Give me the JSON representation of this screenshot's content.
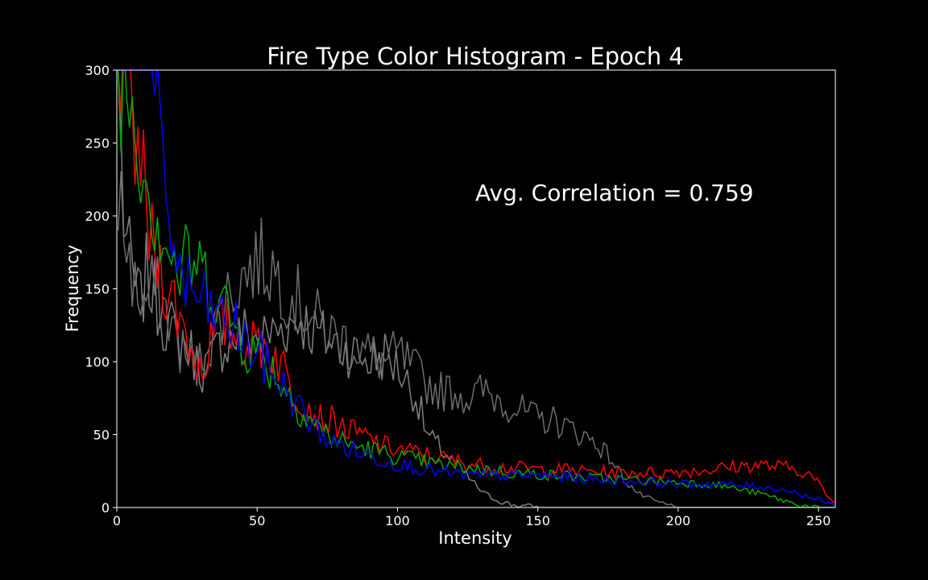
{
  "chart_data": {
    "type": "line",
    "title": "Fire Type Color Histogram - Epoch 4",
    "xlabel": "Intensity",
    "ylabel": "Frequency",
    "xlim": [
      0,
      256
    ],
    "ylim": [
      0,
      300
    ],
    "xticks": [
      0,
      50,
      100,
      150,
      200,
      250
    ],
    "yticks": [
      0,
      50,
      100,
      150,
      200,
      250,
      300
    ],
    "annotation": "Avg. Correlation = 0.759",
    "grid": false,
    "background": "#000000",
    "series": [
      {
        "color": "#808080",
        "points": [
          [
            0,
            300
          ],
          [
            2,
            200
          ],
          [
            4,
            170
          ],
          [
            6,
            150
          ],
          [
            8,
            140
          ],
          [
            10,
            160
          ],
          [
            12,
            150
          ],
          [
            14,
            140
          ],
          [
            16,
            130
          ],
          [
            18,
            125
          ],
          [
            20,
            120
          ],
          [
            22,
            115
          ],
          [
            25,
            110
          ],
          [
            28,
            100
          ],
          [
            30,
            95
          ],
          [
            33,
            100
          ],
          [
            36,
            110
          ],
          [
            40,
            115
          ],
          [
            45,
            120
          ],
          [
            50,
            115
          ],
          [
            55,
            120
          ],
          [
            60,
            125
          ],
          [
            65,
            130
          ],
          [
            70,
            120
          ],
          [
            75,
            115
          ],
          [
            80,
            110
          ],
          [
            85,
            105
          ],
          [
            90,
            100
          ],
          [
            95,
            105
          ],
          [
            100,
            95
          ],
          [
            105,
            80
          ],
          [
            108,
            65
          ],
          [
            110,
            50
          ],
          [
            115,
            40
          ],
          [
            120,
            30
          ],
          [
            125,
            20
          ],
          [
            130,
            10
          ],
          [
            135,
            5
          ],
          [
            140,
            2
          ],
          [
            150,
            0
          ],
          [
            160,
            0
          ],
          [
            256,
            0
          ]
        ]
      },
      {
        "color": "#6e6e6e",
        "points": [
          [
            0,
            220
          ],
          [
            3,
            180
          ],
          [
            6,
            150
          ],
          [
            9,
            140
          ],
          [
            12,
            150
          ],
          [
            15,
            145
          ],
          [
            18,
            130
          ],
          [
            22,
            110
          ],
          [
            25,
            100
          ],
          [
            28,
            95
          ],
          [
            32,
            110
          ],
          [
            36,
            130
          ],
          [
            40,
            150
          ],
          [
            45,
            160
          ],
          [
            50,
            170
          ],
          [
            55,
            165
          ],
          [
            60,
            150
          ],
          [
            65,
            140
          ],
          [
            70,
            130
          ],
          [
            75,
            120
          ],
          [
            80,
            115
          ],
          [
            85,
            110
          ],
          [
            90,
            105
          ],
          [
            95,
            100
          ],
          [
            100,
            105
          ],
          [
            105,
            95
          ],
          [
            110,
            85
          ],
          [
            115,
            80
          ],
          [
            120,
            80
          ],
          [
            125,
            75
          ],
          [
            130,
            80
          ],
          [
            135,
            75
          ],
          [
            140,
            70
          ],
          [
            145,
            65
          ],
          [
            150,
            60
          ],
          [
            155,
            60
          ],
          [
            160,
            55
          ],
          [
            165,
            50
          ],
          [
            170,
            45
          ],
          [
            175,
            35
          ],
          [
            180,
            20
          ],
          [
            185,
            10
          ],
          [
            190,
            5
          ],
          [
            195,
            2
          ],
          [
            200,
            0
          ],
          [
            256,
            0
          ]
        ]
      },
      {
        "color": "#ff0000",
        "points": [
          [
            0,
            300
          ],
          [
            3,
            280
          ],
          [
            5,
            260
          ],
          [
            8,
            240
          ],
          [
            10,
            200
          ],
          [
            12,
            180
          ],
          [
            14,
            170
          ],
          [
            16,
            160
          ],
          [
            18,
            150
          ],
          [
            20,
            140
          ],
          [
            22,
            130
          ],
          [
            25,
            115
          ],
          [
            28,
            100
          ],
          [
            30,
            95
          ],
          [
            32,
            110
          ],
          [
            35,
            120
          ],
          [
            38,
            125
          ],
          [
            42,
            120
          ],
          [
            45,
            115
          ],
          [
            48,
            110
          ],
          [
            50,
            115
          ],
          [
            53,
            110
          ],
          [
            56,
            105
          ],
          [
            58,
            100
          ],
          [
            60,
            90
          ],
          [
            62,
            80
          ],
          [
            65,
            75
          ],
          [
            68,
            70
          ],
          [
            70,
            65
          ],
          [
            72,
            62
          ],
          [
            75,
            60
          ],
          [
            78,
            58
          ],
          [
            80,
            55
          ],
          [
            83,
            52
          ],
          [
            86,
            50
          ],
          [
            90,
            47
          ],
          [
            95,
            42
          ],
          [
            100,
            40
          ],
          [
            105,
            38
          ],
          [
            110,
            36
          ],
          [
            115,
            34
          ],
          [
            120,
            32
          ],
          [
            125,
            30
          ],
          [
            130,
            29
          ],
          [
            135,
            28
          ],
          [
            140,
            27
          ],
          [
            145,
            27
          ],
          [
            150,
            26
          ],
          [
            155,
            26
          ],
          [
            160,
            26
          ],
          [
            165,
            25
          ],
          [
            170,
            25
          ],
          [
            175,
            24
          ],
          [
            180,
            24
          ],
          [
            185,
            24
          ],
          [
            190,
            24
          ],
          [
            195,
            24
          ],
          [
            200,
            25
          ],
          [
            205,
            25
          ],
          [
            210,
            26
          ],
          [
            215,
            27
          ],
          [
            220,
            28
          ],
          [
            225,
            29
          ],
          [
            230,
            29
          ],
          [
            235,
            28
          ],
          [
            240,
            27
          ],
          [
            245,
            24
          ],
          [
            248,
            20
          ],
          [
            250,
            15
          ],
          [
            252,
            10
          ],
          [
            254,
            5
          ],
          [
            256,
            0
          ]
        ]
      },
      {
        "color": "#00aa00",
        "points": [
          [
            0,
            300
          ],
          [
            3,
            290
          ],
          [
            6,
            270
          ],
          [
            8,
            250
          ],
          [
            10,
            230
          ],
          [
            12,
            210
          ],
          [
            14,
            200
          ],
          [
            16,
            190
          ],
          [
            18,
            180
          ],
          [
            20,
            165
          ],
          [
            22,
            160
          ],
          [
            25,
            170
          ],
          [
            28,
            165
          ],
          [
            30,
            160
          ],
          [
            33,
            155
          ],
          [
            36,
            145
          ],
          [
            40,
            130
          ],
          [
            43,
            120
          ],
          [
            46,
            110
          ],
          [
            50,
            105
          ],
          [
            53,
            100
          ],
          [
            56,
            92
          ],
          [
            60,
            80
          ],
          [
            63,
            72
          ],
          [
            66,
            65
          ],
          [
            70,
            58
          ],
          [
            73,
            52
          ],
          [
            76,
            48
          ],
          [
            80,
            45
          ],
          [
            85,
            42
          ],
          [
            90,
            40
          ],
          [
            95,
            37
          ],
          [
            100,
            35
          ],
          [
            105,
            33
          ],
          [
            110,
            31
          ],
          [
            115,
            29
          ],
          [
            120,
            28
          ],
          [
            125,
            27
          ],
          [
            130,
            26
          ],
          [
            135,
            25
          ],
          [
            140,
            24
          ],
          [
            145,
            23
          ],
          [
            150,
            23
          ],
          [
            155,
            22
          ],
          [
            160,
            22
          ],
          [
            165,
            21
          ],
          [
            170,
            20
          ],
          [
            175,
            20
          ],
          [
            180,
            19
          ],
          [
            185,
            19
          ],
          [
            190,
            18
          ],
          [
            195,
            18
          ],
          [
            200,
            17
          ],
          [
            205,
            17
          ],
          [
            210,
            16
          ],
          [
            215,
            15
          ],
          [
            220,
            13
          ],
          [
            225,
            11
          ],
          [
            230,
            9
          ],
          [
            235,
            6
          ],
          [
            240,
            3
          ],
          [
            245,
            1
          ],
          [
            250,
            0
          ],
          [
            256,
            0
          ]
        ]
      },
      {
        "color": "#0000ff",
        "points": [
          [
            0,
            300
          ],
          [
            4,
            300
          ],
          [
            8,
            300
          ],
          [
            10,
            300
          ],
          [
            12,
            300
          ],
          [
            13,
            280
          ],
          [
            14,
            260
          ],
          [
            15,
            240
          ],
          [
            16,
            225
          ],
          [
            18,
            200
          ],
          [
            20,
            180
          ],
          [
            22,
            160
          ],
          [
            25,
            150
          ],
          [
            28,
            145
          ],
          [
            30,
            140
          ],
          [
            33,
            135
          ],
          [
            36,
            130
          ],
          [
            40,
            125
          ],
          [
            43,
            120
          ],
          [
            46,
            110
          ],
          [
            50,
            105
          ],
          [
            53,
            98
          ],
          [
            56,
            90
          ],
          [
            60,
            80
          ],
          [
            63,
            72
          ],
          [
            66,
            65
          ],
          [
            70,
            55
          ],
          [
            73,
            50
          ],
          [
            76,
            45
          ],
          [
            80,
            42
          ],
          [
            85,
            38
          ],
          [
            90,
            35
          ],
          [
            95,
            32
          ],
          [
            100,
            30
          ],
          [
            105,
            28
          ],
          [
            110,
            26
          ],
          [
            115,
            24
          ],
          [
            120,
            23
          ],
          [
            125,
            22
          ],
          [
            130,
            22
          ],
          [
            135,
            22
          ],
          [
            140,
            22
          ],
          [
            145,
            22
          ],
          [
            150,
            22
          ],
          [
            155,
            21
          ],
          [
            160,
            21
          ],
          [
            165,
            20
          ],
          [
            170,
            19
          ],
          [
            175,
            19
          ],
          [
            180,
            18
          ],
          [
            185,
            18
          ],
          [
            190,
            17
          ],
          [
            195,
            17
          ],
          [
            200,
            16
          ],
          [
            205,
            16
          ],
          [
            210,
            16
          ],
          [
            215,
            16
          ],
          [
            220,
            15
          ],
          [
            225,
            15
          ],
          [
            230,
            14
          ],
          [
            235,
            13
          ],
          [
            240,
            11
          ],
          [
            245,
            8
          ],
          [
            250,
            5
          ],
          [
            254,
            2
          ],
          [
            256,
            0
          ]
        ]
      }
    ]
  }
}
